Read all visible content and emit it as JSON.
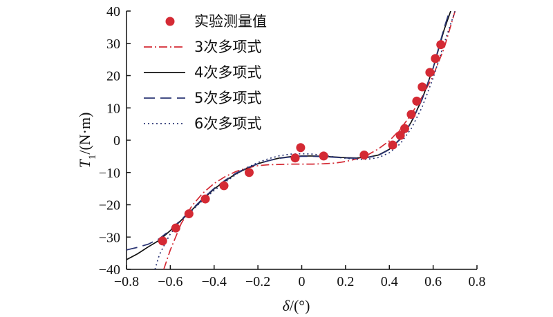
{
  "chart_data": {
    "type": "line",
    "xlabel_prefix": "δ",
    "xlabel_unit": "/(°)",
    "ylabel_var": "T",
    "ylabel_sub": "1",
    "ylabel_unit": "/(N·m)",
    "xlim": [
      -0.8,
      0.8
    ],
    "ylim": [
      -40,
      40
    ],
    "xticks": [
      -0.8,
      -0.6,
      -0.4,
      -0.2,
      0,
      0.2,
      0.4,
      0.6,
      0.8
    ],
    "xtick_labels": [
      "−0.8",
      "−0.6",
      "−0.4",
      "−0.2",
      "0",
      "0.2",
      "0.4",
      "0.6",
      "0.8"
    ],
    "yticks": [
      -40,
      -30,
      -20,
      -10,
      0,
      10,
      20,
      30,
      40
    ],
    "ytick_labels": [
      "−40",
      "−30",
      "−20",
      "−10",
      "0",
      "10",
      "20",
      "30",
      "40"
    ],
    "grid": false,
    "legend_position": "top-left",
    "measured": {
      "name": "实验测量值",
      "color": "#d42a34",
      "x": [
        -0.635,
        -0.575,
        -0.515,
        -0.44,
        -0.355,
        -0.24,
        -0.03,
        -0.005,
        0.1,
        0.285,
        0.415,
        0.45,
        0.47,
        0.5,
        0.525,
        0.55,
        0.585,
        0.61,
        0.635
      ],
      "y": [
        -31.2,
        -27.2,
        -22.8,
        -18.2,
        -14.1,
        -10.0,
        -5.5,
        -2.3,
        -4.9,
        -4.6,
        -1.5,
        1.5,
        3.6,
        8.0,
        12.1,
        16.5,
        21.0,
        25.3,
        29.6
      ]
    },
    "series": [
      {
        "name": "3次多项式",
        "color": "#d42a34",
        "dash": "12 4 2 4",
        "x": [
          -0.63,
          -0.6,
          -0.55,
          -0.5,
          -0.45,
          -0.4,
          -0.35,
          -0.3,
          -0.25,
          -0.2,
          -0.15,
          -0.1,
          -0.05,
          0,
          0.05,
          0.1,
          0.15,
          0.2,
          0.25,
          0.3,
          0.35,
          0.4,
          0.45,
          0.5,
          0.55,
          0.6,
          0.65,
          0.7
        ],
        "y": [
          -40.0,
          -34.0,
          -25.8,
          -20.2,
          -16.3,
          -13.4,
          -11.3,
          -9.7,
          -8.6,
          -7.9,
          -7.6,
          -7.5,
          -7.4,
          -7.4,
          -7.4,
          -7.3,
          -7.1,
          -6.6,
          -5.8,
          -4.6,
          -2.7,
          -0.2,
          3.4,
          8.0,
          13.5,
          20.0,
          28.5,
          40.0
        ]
      },
      {
        "name": "4次多项式",
        "color": "#111111",
        "dash": "",
        "x": [
          -0.8,
          -0.75,
          -0.7,
          -0.65,
          -0.6,
          -0.55,
          -0.5,
          -0.45,
          -0.4,
          -0.35,
          -0.3,
          -0.25,
          -0.2,
          -0.15,
          -0.1,
          -0.05,
          0,
          0.05,
          0.1,
          0.15,
          0.2,
          0.25,
          0.3,
          0.35,
          0.4,
          0.45,
          0.5,
          0.55,
          0.6,
          0.65,
          0.68
        ],
        "y": [
          -37.0,
          -35.2,
          -33.0,
          -31.0,
          -28.0,
          -24.8,
          -21.5,
          -18.2,
          -15.1,
          -12.6,
          -10.4,
          -8.7,
          -7.3,
          -6.3,
          -5.5,
          -5.1,
          -4.9,
          -4.9,
          -5.0,
          -5.2,
          -5.4,
          -5.5,
          -5.3,
          -4.6,
          -2.8,
          0.4,
          5.6,
          12.8,
          22.3,
          34.2,
          40.0
        ]
      },
      {
        "name": "5次多项式",
        "color": "#2b3574",
        "dash": "16 8",
        "x": [
          -0.8,
          -0.75,
          -0.7,
          -0.65,
          -0.6,
          -0.55,
          -0.5,
          -0.45,
          -0.4,
          -0.35,
          -0.3,
          -0.25,
          -0.2,
          -0.15,
          -0.1,
          -0.05,
          0,
          0.05,
          0.1,
          0.15,
          0.2,
          0.25,
          0.3,
          0.35,
          0.4,
          0.45,
          0.5,
          0.55,
          0.6,
          0.65,
          0.675
        ],
        "y": [
          -34.0,
          -33.2,
          -32.2,
          -30.5,
          -27.8,
          -24.6,
          -21.3,
          -18.0,
          -14.9,
          -12.4,
          -10.2,
          -8.6,
          -7.3,
          -6.3,
          -5.6,
          -5.2,
          -5.0,
          -5.0,
          -5.1,
          -5.3,
          -5.5,
          -5.6,
          -5.4,
          -4.7,
          -2.9,
          0.3,
          5.4,
          12.7,
          22.4,
          34.8,
          40.0
        ]
      },
      {
        "name": "6次多项式",
        "color": "#2b3574",
        "dash": "2 4",
        "x": [
          -0.67,
          -0.65,
          -0.62,
          -0.6,
          -0.55,
          -0.5,
          -0.45,
          -0.4,
          -0.35,
          -0.3,
          -0.25,
          -0.2,
          -0.15,
          -0.1,
          -0.05,
          0,
          0.05,
          0.1,
          0.15,
          0.2,
          0.25,
          0.3,
          0.35,
          0.4,
          0.45,
          0.5,
          0.55,
          0.6,
          0.65,
          0.7
        ],
        "y": [
          -40.0,
          -35.5,
          -31.5,
          -29.0,
          -24.9,
          -21.7,
          -18.5,
          -15.6,
          -13.0,
          -10.6,
          -8.5,
          -6.9,
          -5.7,
          -4.8,
          -4.3,
          -4.2,
          -4.3,
          -4.7,
          -5.2,
          -5.6,
          -5.9,
          -5.9,
          -5.4,
          -3.9,
          -1.1,
          3.6,
          10.3,
          19.3,
          30.0,
          40.0
        ]
      }
    ]
  }
}
